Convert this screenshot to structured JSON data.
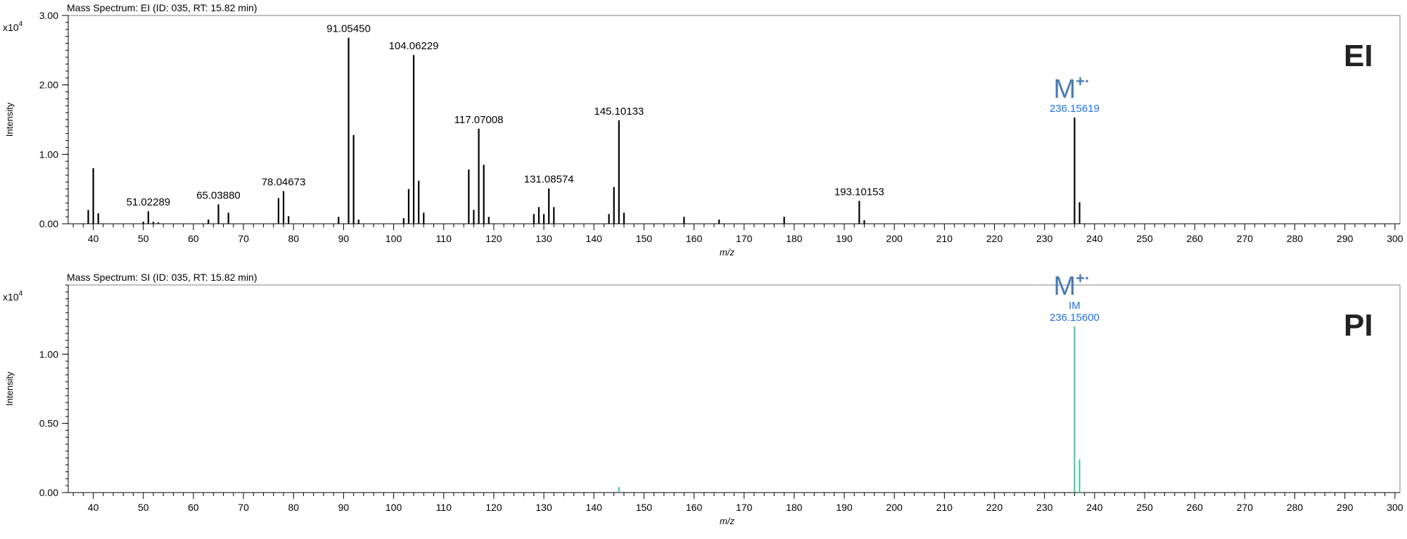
{
  "colors": {
    "ei_series": "#000000",
    "pi_series": "#3cc4a0",
    "annotation_blue": "#1a73e8",
    "ion_label_blue": "#4a7ab5",
    "axis": "#000000",
    "text": "#000000"
  },
  "chart_data": [
    {
      "type": "bar",
      "title": "Mass Spectrum: EI (ID: 035, RT: 15.82 min)",
      "xlabel": "m/z",
      "ylabel": "Intensity",
      "scale_label": "x10",
      "scale_exponent": "4",
      "corner_label": "EI",
      "ion_label": "M",
      "ion_superscript": "+·",
      "xlim": [
        35,
        301
      ],
      "ylim": [
        0,
        3.0
      ],
      "yticks": [
        0.0,
        1.0,
        2.0,
        3.0
      ],
      "ytick_labels": [
        "0.00",
        "1.00",
        "2.00",
        "3.00"
      ],
      "xticks": [
        40,
        50,
        60,
        70,
        80,
        90,
        100,
        110,
        120,
        130,
        140,
        150,
        160,
        170,
        180,
        190,
        200,
        210,
        220,
        230,
        240,
        250,
        260,
        270,
        280,
        290,
        300
      ],
      "xtick_labels": [
        "40",
        "50",
        "60",
        "70",
        "80",
        "90",
        "100",
        "110",
        "120",
        "130",
        "140",
        "150",
        "160",
        "170",
        "180",
        "190",
        "200",
        "210",
        "220",
        "230",
        "240",
        "250",
        "260",
        "270",
        "280",
        "290",
        "300"
      ],
      "peaks": {
        "mz": [
          39,
          40,
          41,
          50,
          51,
          52,
          53,
          63,
          65,
          67,
          77,
          78,
          79,
          89,
          91,
          92,
          93,
          102,
          103,
          104,
          105,
          106,
          115,
          116,
          117,
          118,
          119,
          128,
          129,
          130,
          131,
          132,
          143,
          144,
          145,
          146,
          158,
          165,
          178,
          193,
          194,
          236,
          237
        ],
        "intensity": [
          0.2,
          0.8,
          0.15,
          0.03,
          0.18,
          0.03,
          0.02,
          0.06,
          0.28,
          0.16,
          0.37,
          0.47,
          0.11,
          0.1,
          2.68,
          1.28,
          0.06,
          0.08,
          0.5,
          2.43,
          0.62,
          0.16,
          0.78,
          0.2,
          1.37,
          0.85,
          0.1,
          0.14,
          0.24,
          0.14,
          0.51,
          0.24,
          0.14,
          0.53,
          1.49,
          0.16,
          0.1,
          0.06,
          0.1,
          0.33,
          0.05,
          1.53,
          0.31
        ]
      },
      "annotations": [
        {
          "mz": 51,
          "intensity": 0.18,
          "label": "51.02289",
          "color": "#000000"
        },
        {
          "mz": 65,
          "intensity": 0.28,
          "label": "65.03880",
          "color": "#000000"
        },
        {
          "mz": 78,
          "intensity": 0.47,
          "label": "78.04673",
          "color": "#000000"
        },
        {
          "mz": 91,
          "intensity": 2.68,
          "label": "91.05450",
          "color": "#000000"
        },
        {
          "mz": 104,
          "intensity": 2.43,
          "label": "104.06229",
          "color": "#000000"
        },
        {
          "mz": 117,
          "intensity": 1.37,
          "label": "117.07008",
          "color": "#000000"
        },
        {
          "mz": 131,
          "intensity": 0.51,
          "label": "131.08574",
          "color": "#000000"
        },
        {
          "mz": 145,
          "intensity": 1.49,
          "label": "145.10133",
          "color": "#000000"
        },
        {
          "mz": 193,
          "intensity": 0.33,
          "label": "193.10153",
          "color": "#000000"
        },
        {
          "mz": 236,
          "intensity": 1.53,
          "label": "236.15619",
          "color": "#1a73e8"
        }
      ]
    },
    {
      "type": "bar",
      "title": "Mass Spectrum: SI (ID: 035, RT: 15.82 min)",
      "xlabel": "m/z",
      "ylabel": "Intensity",
      "scale_label": "x10",
      "scale_exponent": "4",
      "corner_label": "PI",
      "ion_label": "M",
      "ion_superscript": "+·",
      "xlim": [
        35,
        301
      ],
      "ylim": [
        0,
        1.5
      ],
      "yticks": [
        0.0,
        0.5,
        1.0
      ],
      "ytick_labels": [
        "0.00",
        "0.50",
        "1.00"
      ],
      "xticks": [
        40,
        50,
        60,
        70,
        80,
        90,
        100,
        110,
        120,
        130,
        140,
        150,
        160,
        170,
        180,
        190,
        200,
        210,
        220,
        230,
        240,
        250,
        260,
        270,
        280,
        290,
        300
      ],
      "xtick_labels": [
        "40",
        "50",
        "60",
        "70",
        "80",
        "90",
        "100",
        "110",
        "120",
        "130",
        "140",
        "150",
        "160",
        "170",
        "180",
        "190",
        "200",
        "210",
        "220",
        "230",
        "240",
        "250",
        "260",
        "270",
        "280",
        "290",
        "300"
      ],
      "peaks": {
        "mz": [
          145,
          236,
          237
        ],
        "intensity": [
          0.04,
          1.2,
          0.24
        ]
      },
      "annotations": [
        {
          "mz": 236,
          "intensity": 1.2,
          "label": "236.15600",
          "label_top": "IM",
          "color": "#1a73e8"
        }
      ]
    }
  ]
}
